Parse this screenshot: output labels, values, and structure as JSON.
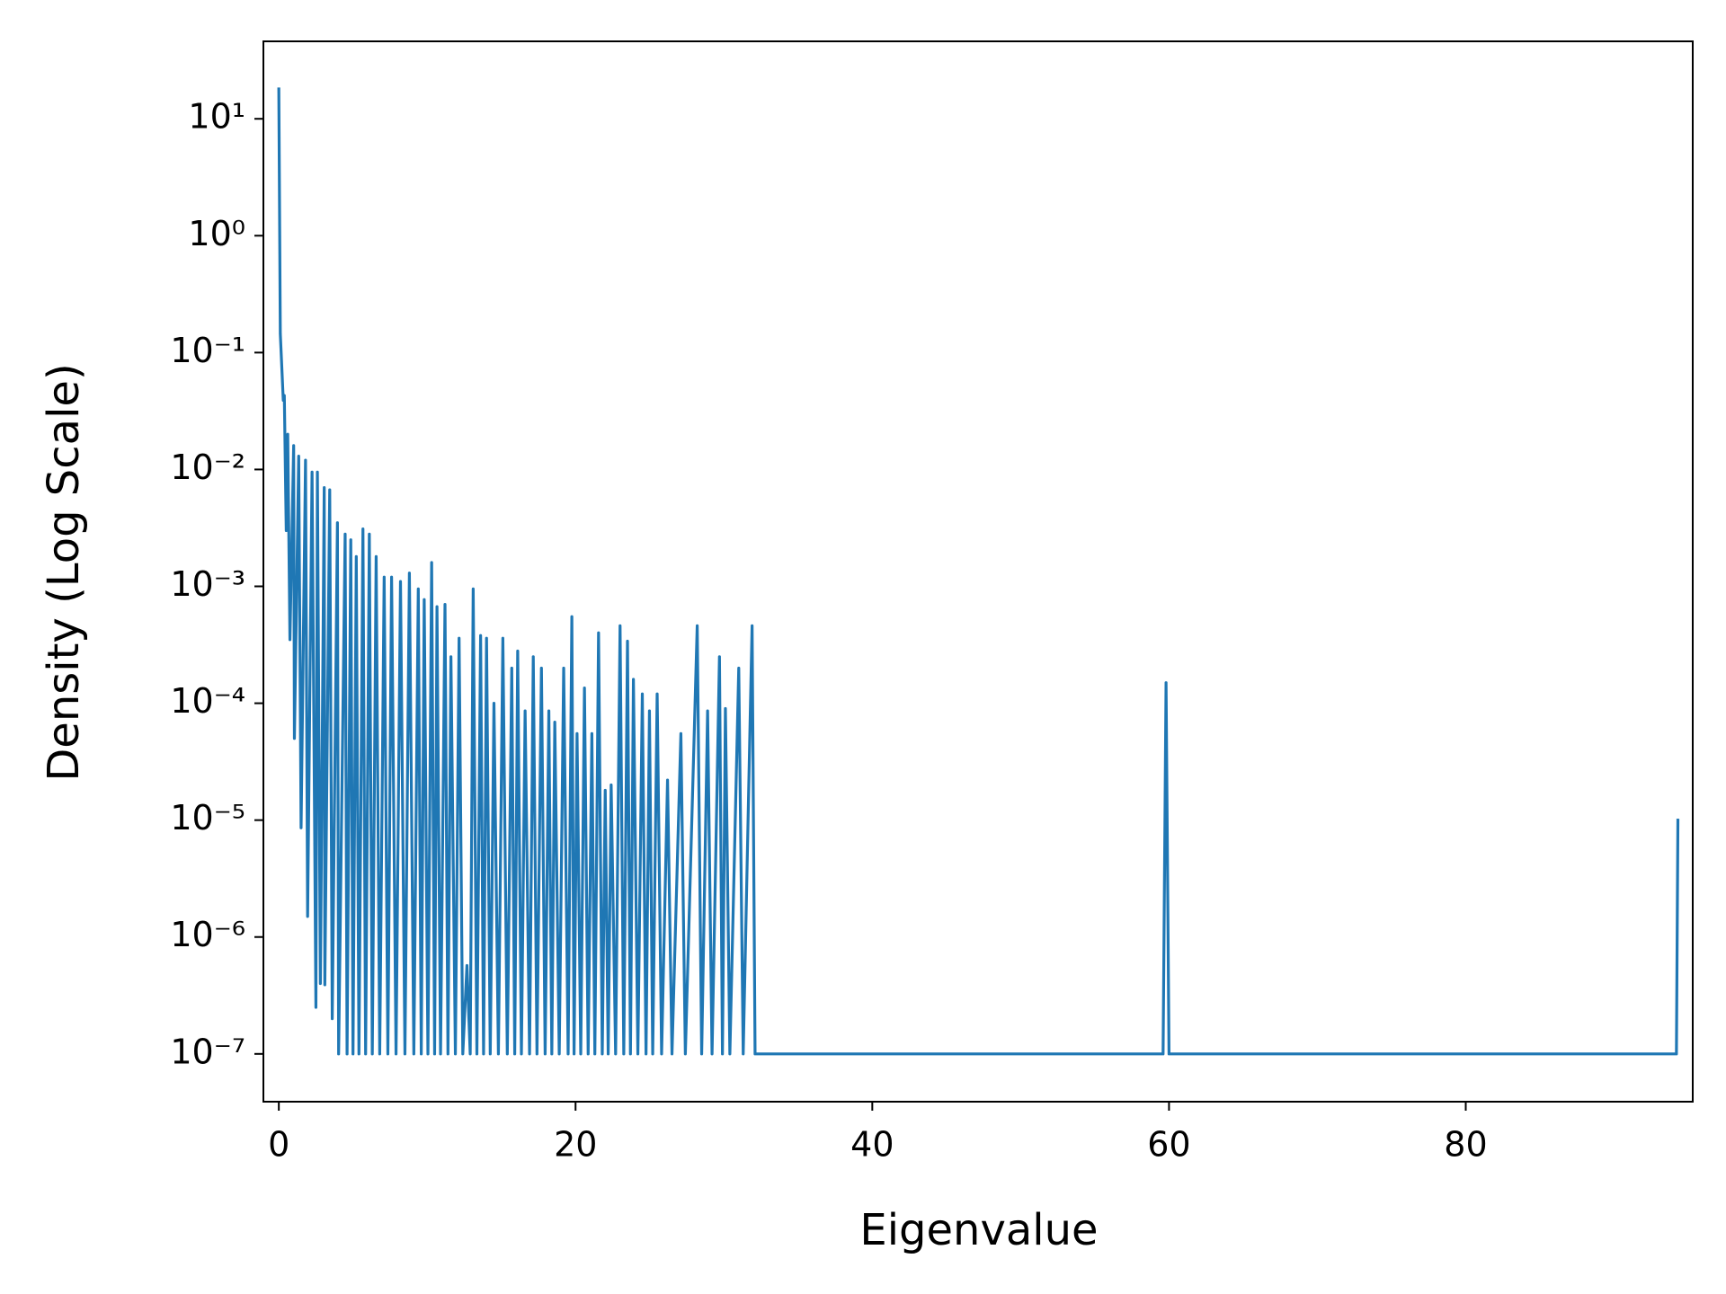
{
  "chart_data": {
    "type": "line",
    "xlabel": "Eigenvalue",
    "ylabel": "Density (Log Scale)",
    "color": "#1f77b4",
    "log_y": true,
    "xlim": [
      -1.04,
      95.3
    ],
    "xticks": [
      0,
      20,
      40,
      60,
      80
    ],
    "ylim": [
      3.9e-08,
      46
    ],
    "yticks": [
      {
        "value": 10,
        "label": "10¹"
      },
      {
        "value": 1,
        "label": "10⁰"
      },
      {
        "value": 0.1,
        "label": "10⁻¹"
      },
      {
        "value": 0.01,
        "label": "10⁻²"
      },
      {
        "value": 0.001,
        "label": "10⁻³"
      },
      {
        "value": 0.0001,
        "label": "10⁻⁴"
      },
      {
        "value": 1e-05,
        "label": "10⁻⁵"
      },
      {
        "value": 1e-06,
        "label": "10⁻⁶"
      },
      {
        "value": 1e-07,
        "label": "10⁻⁷"
      }
    ],
    "x": [
      0,
      0.1,
      0.3,
      0.37,
      0.5,
      0.6,
      0.75,
      1.0,
      1.05,
      1.34,
      1.5,
      1.8,
      1.94,
      2.24,
      2.5,
      2.6,
      2.8,
      3.06,
      3.1,
      3.43,
      3.6,
      3.95,
      4.03,
      4.47,
      4.6,
      4.85,
      5.0,
      5.22,
      5.4,
      5.67,
      5.85,
      6.1,
      6.3,
      6.56,
      6.8,
      7.1,
      7.35,
      7.6,
      7.9,
      8.2,
      8.5,
      8.8,
      9.1,
      9.4,
      9.6,
      9.8,
      10.05,
      10.3,
      10.5,
      10.66,
      10.9,
      11.2,
      11.4,
      11.6,
      11.9,
      12.15,
      12.4,
      12.68,
      12.9,
      13.1,
      13.35,
      13.6,
      13.8,
      14.0,
      14.25,
      14.5,
      14.8,
      15.1,
      15.4,
      15.7,
      15.9,
      16.1,
      16.35,
      16.6,
      16.9,
      17.15,
      17.4,
      17.7,
      17.95,
      18.2,
      18.4,
      18.6,
      18.9,
      19.2,
      19.5,
      19.75,
      19.9,
      20.1,
      20.35,
      20.6,
      20.85,
      21.1,
      21.3,
      21.55,
      21.8,
      22.0,
      22.2,
      22.4,
      22.7,
      23.0,
      23.25,
      23.5,
      23.7,
      23.9,
      24.2,
      24.5,
      24.75,
      24.98,
      25.2,
      25.5,
      25.8,
      26.2,
      26.5,
      27.1,
      27.4,
      28.2,
      28.5,
      28.9,
      29.2,
      29.7,
      29.9,
      30.1,
      30.4,
      31.0,
      31.3,
      31.9,
      32.1,
      59.6,
      59.8,
      60.0,
      94.2,
      94.3
    ],
    "values": [
      18,
      0.145,
      0.039,
      0.043,
      0.003,
      0.02,
      0.00035,
      0.016,
      5e-05,
      0.013,
      8.6e-06,
      0.012,
      1.5e-06,
      0.0095,
      2.5e-07,
      0.0095,
      4e-07,
      0.007,
      3.9e-07,
      0.0067,
      2e-07,
      0.0035,
      1e-07,
      0.0028,
      1e-07,
      0.0025,
      1e-07,
      0.0018,
      1e-07,
      0.0031,
      1e-07,
      0.0028,
      1e-07,
      0.0018,
      1e-07,
      0.0012,
      1e-07,
      0.0012,
      1e-07,
      0.0011,
      1e-07,
      0.0013,
      1e-07,
      0.00095,
      1e-07,
      0.00077,
      1e-07,
      0.0016,
      1e-07,
      0.00067,
      1e-07,
      0.0007,
      1e-07,
      0.00025,
      1e-07,
      0.00036,
      1e-07,
      5.7e-07,
      1e-07,
      0.00095,
      1e-07,
      0.00038,
      1e-07,
      0.00036,
      1e-07,
      0.0001,
      1e-07,
      0.00036,
      1e-07,
      0.0002,
      1e-07,
      0.00028,
      1e-07,
      8.6e-05,
      1e-07,
      0.00025,
      1e-07,
      0.0002,
      1e-07,
      8.6e-05,
      1e-07,
      6.9e-05,
      1e-07,
      0.0002,
      1e-07,
      0.00055,
      1e-07,
      5.5e-05,
      1e-07,
      0.000135,
      1e-07,
      5.5e-05,
      1e-07,
      0.0004,
      1e-07,
      1.8e-05,
      1e-07,
      2e-05,
      1e-07,
      0.00046,
      1e-07,
      0.00034,
      1e-07,
      0.00016,
      1e-07,
      0.00012,
      1e-07,
      8.6e-05,
      1e-07,
      0.00012,
      1e-07,
      2.2e-05,
      1e-07,
      5.5e-05,
      1e-07,
      0.00046,
      1e-07,
      8.6e-05,
      1e-07,
      0.00025,
      1e-07,
      9e-05,
      1e-07,
      0.0002,
      1e-07,
      0.00046,
      1e-07,
      1e-07,
      0.00015,
      1e-07,
      1e-07,
      1e-05
    ]
  }
}
